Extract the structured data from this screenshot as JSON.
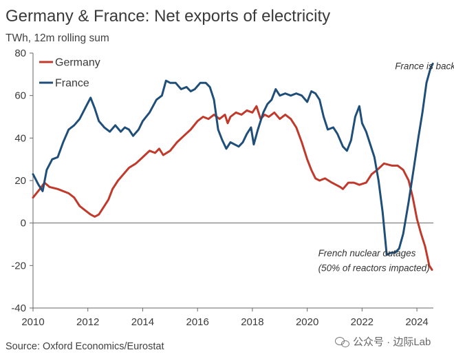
{
  "header": {
    "title": "Germany & France: Net exports of electricity",
    "subtitle": "TWh, 12m rolling sum"
  },
  "footer": {
    "source": "Source: Oxford Economics/Eurostat",
    "watermark": "公众号 · 边际Lab"
  },
  "colors": {
    "germany": "#c0392b",
    "france": "#1f4e79",
    "axis": "#666666"
  },
  "chart_data": {
    "type": "line",
    "title": "Germany & France: Net exports of electricity",
    "subtitle": "TWh, 12m rolling sum",
    "ylim": [
      -40,
      80
    ],
    "xlim": [
      2010,
      2024.6
    ],
    "yticks": [
      "-40",
      "-20",
      "0",
      "20",
      "40",
      "60",
      "80"
    ],
    "xticks": [
      "2010",
      "2012",
      "2014",
      "2016",
      "2018",
      "2020",
      "2022",
      "2024"
    ],
    "legend": "top-left",
    "grid": false,
    "annotations": [
      {
        "text": "France is back!",
        "x": 2023.2,
        "y": 74
      },
      {
        "text": "French nuclear outages",
        "x": 2020.4,
        "y": -14
      },
      {
        "text": "(50% of reactors impacted)",
        "x": 2020.4,
        "y": -21
      }
    ],
    "series": [
      {
        "name": "Germany",
        "color": "#c0392b",
        "points": [
          [
            2010.0,
            12
          ],
          [
            2010.25,
            16
          ],
          [
            2010.42,
            19
          ],
          [
            2010.6,
            17
          ],
          [
            2010.9,
            16
          ],
          [
            2011.1,
            15
          ],
          [
            2011.3,
            14
          ],
          [
            2011.5,
            12
          ],
          [
            2011.7,
            8
          ],
          [
            2011.9,
            6
          ],
          [
            2012.1,
            4
          ],
          [
            2012.25,
            3
          ],
          [
            2012.4,
            4
          ],
          [
            2012.55,
            7
          ],
          [
            2012.75,
            11
          ],
          [
            2012.9,
            16
          ],
          [
            2013.1,
            20
          ],
          [
            2013.3,
            23
          ],
          [
            2013.5,
            26
          ],
          [
            2013.75,
            28
          ],
          [
            2014.0,
            31
          ],
          [
            2014.25,
            34
          ],
          [
            2014.45,
            33
          ],
          [
            2014.6,
            35
          ],
          [
            2014.75,
            32
          ],
          [
            2015.0,
            34
          ],
          [
            2015.25,
            38
          ],
          [
            2015.5,
            41
          ],
          [
            2015.75,
            44
          ],
          [
            2016.0,
            48
          ],
          [
            2016.2,
            50
          ],
          [
            2016.4,
            49
          ],
          [
            2016.6,
            51
          ],
          [
            2016.8,
            49
          ],
          [
            2017.0,
            51
          ],
          [
            2017.1,
            47
          ],
          [
            2017.2,
            50
          ],
          [
            2017.4,
            52
          ],
          [
            2017.6,
            51
          ],
          [
            2017.8,
            53
          ],
          [
            2018.0,
            52
          ],
          [
            2018.15,
            55
          ],
          [
            2018.3,
            49
          ],
          [
            2018.45,
            51
          ],
          [
            2018.6,
            50
          ],
          [
            2018.8,
            52
          ],
          [
            2019.0,
            49
          ],
          [
            2019.2,
            51
          ],
          [
            2019.4,
            49
          ],
          [
            2019.6,
            45
          ],
          [
            2019.8,
            38
          ],
          [
            2020.0,
            30
          ],
          [
            2020.15,
            25
          ],
          [
            2020.3,
            21
          ],
          [
            2020.45,
            20
          ],
          [
            2020.65,
            21
          ],
          [
            2020.9,
            19
          ],
          [
            2021.2,
            17
          ],
          [
            2021.3,
            16
          ],
          [
            2021.5,
            19
          ],
          [
            2021.7,
            19
          ],
          [
            2021.9,
            18
          ],
          [
            2022.15,
            19
          ],
          [
            2022.35,
            23
          ],
          [
            2022.55,
            25
          ],
          [
            2022.8,
            28
          ],
          [
            2023.1,
            27
          ],
          [
            2023.3,
            27
          ],
          [
            2023.5,
            25
          ],
          [
            2023.7,
            20
          ],
          [
            2023.85,
            12
          ],
          [
            2024.0,
            2
          ],
          [
            2024.15,
            -5
          ],
          [
            2024.3,
            -11
          ],
          [
            2024.45,
            -20
          ],
          [
            2024.55,
            -22
          ]
        ]
      },
      {
        "name": "France",
        "color": "#1f4e79",
        "points": [
          [
            2010.0,
            23
          ],
          [
            2010.2,
            18
          ],
          [
            2010.35,
            15
          ],
          [
            2010.5,
            25
          ],
          [
            2010.7,
            30
          ],
          [
            2010.9,
            31
          ],
          [
            2011.1,
            38
          ],
          [
            2011.3,
            44
          ],
          [
            2011.5,
            46
          ],
          [
            2011.7,
            49
          ],
          [
            2011.9,
            54
          ],
          [
            2012.1,
            59
          ],
          [
            2012.25,
            54
          ],
          [
            2012.4,
            48
          ],
          [
            2012.6,
            45
          ],
          [
            2012.8,
            43
          ],
          [
            2013.0,
            46
          ],
          [
            2013.2,
            43
          ],
          [
            2013.35,
            45
          ],
          [
            2013.5,
            44
          ],
          [
            2013.65,
            41
          ],
          [
            2013.85,
            44
          ],
          [
            2014.0,
            48
          ],
          [
            2014.25,
            52
          ],
          [
            2014.5,
            58
          ],
          [
            2014.7,
            60
          ],
          [
            2014.85,
            67
          ],
          [
            2015.0,
            66
          ],
          [
            2015.2,
            66
          ],
          [
            2015.4,
            63
          ],
          [
            2015.6,
            64
          ],
          [
            2015.75,
            62
          ],
          [
            2015.9,
            63
          ],
          [
            2016.1,
            66
          ],
          [
            2016.3,
            66
          ],
          [
            2016.45,
            64
          ],
          [
            2016.6,
            58
          ],
          [
            2016.75,
            44
          ],
          [
            2016.9,
            39
          ],
          [
            2017.05,
            35
          ],
          [
            2017.2,
            38
          ],
          [
            2017.35,
            37
          ],
          [
            2017.5,
            36
          ],
          [
            2017.65,
            38
          ],
          [
            2017.8,
            42
          ],
          [
            2017.95,
            45
          ],
          [
            2018.05,
            37
          ],
          [
            2018.2,
            44
          ],
          [
            2018.4,
            52
          ],
          [
            2018.55,
            56
          ],
          [
            2018.7,
            58
          ],
          [
            2018.85,
            63
          ],
          [
            2019.0,
            60
          ],
          [
            2019.2,
            61
          ],
          [
            2019.4,
            60
          ],
          [
            2019.6,
            61
          ],
          [
            2019.8,
            60
          ],
          [
            2020.0,
            57
          ],
          [
            2020.15,
            62
          ],
          [
            2020.3,
            61
          ],
          [
            2020.45,
            58
          ],
          [
            2020.6,
            50
          ],
          [
            2020.75,
            44
          ],
          [
            2020.95,
            45
          ],
          [
            2021.1,
            42
          ],
          [
            2021.3,
            36
          ],
          [
            2021.45,
            34
          ],
          [
            2021.6,
            39
          ],
          [
            2021.75,
            50
          ],
          [
            2021.9,
            55
          ],
          [
            2022.0,
            47
          ],
          [
            2022.15,
            43
          ],
          [
            2022.3,
            37
          ],
          [
            2022.45,
            31
          ],
          [
            2022.6,
            20
          ],
          [
            2022.75,
            5
          ],
          [
            2022.9,
            -15
          ],
          [
            2023.05,
            -14
          ],
          [
            2023.2,
            -14
          ],
          [
            2023.35,
            -12
          ],
          [
            2023.5,
            -5
          ],
          [
            2023.7,
            10
          ],
          [
            2023.9,
            27
          ],
          [
            2024.05,
            40
          ],
          [
            2024.2,
            52
          ],
          [
            2024.35,
            66
          ],
          [
            2024.5,
            73
          ],
          [
            2024.58,
            75
          ]
        ]
      }
    ]
  }
}
